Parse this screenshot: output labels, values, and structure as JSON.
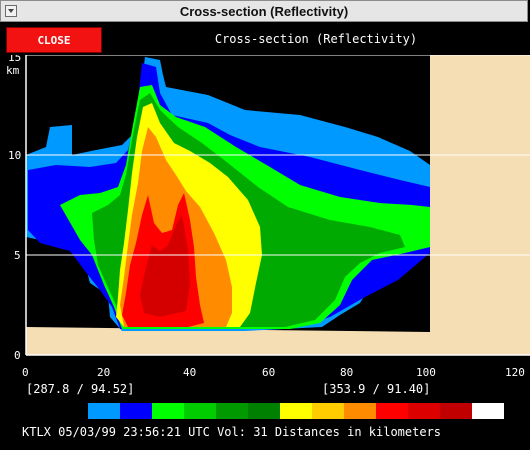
{
  "window": {
    "title": "Cross-section (Reflectivity)"
  },
  "toolbar": {
    "close_label": "CLOSE",
    "panel_title": "Cross-section (Reflectivity)"
  },
  "plot": {
    "y_axis": {
      "unit": "km",
      "ticks": [
        "0",
        "5",
        "10",
        "15"
      ],
      "range": [
        0,
        15
      ]
    },
    "x_axis": {
      "ticks": [
        "0",
        "20",
        "40",
        "60",
        "80",
        "100",
        "120"
      ],
      "range": [
        0,
        120
      ]
    },
    "data_extent_km": 100,
    "colors": {
      "ground": "#f5deb3",
      "background": "#000000",
      "gridline": "#ffffff"
    }
  },
  "coords": {
    "start": "[287.8 /  94.52]",
    "end": "[353.9 /  91.40]"
  },
  "legend": {
    "colors": [
      "#0099ff",
      "#0000ff",
      "#00ff00",
      "#00cc00",
      "#009900",
      "#008000",
      "#ffff00",
      "#ffcc00",
      "#ff8c00",
      "#ff0000",
      "#dd0000",
      "#c00000",
      "#ffffff"
    ]
  },
  "status": {
    "text": "KTLX 05/03/99 23:56:21 UTC Vol: 31 Distances in kilometers"
  }
}
